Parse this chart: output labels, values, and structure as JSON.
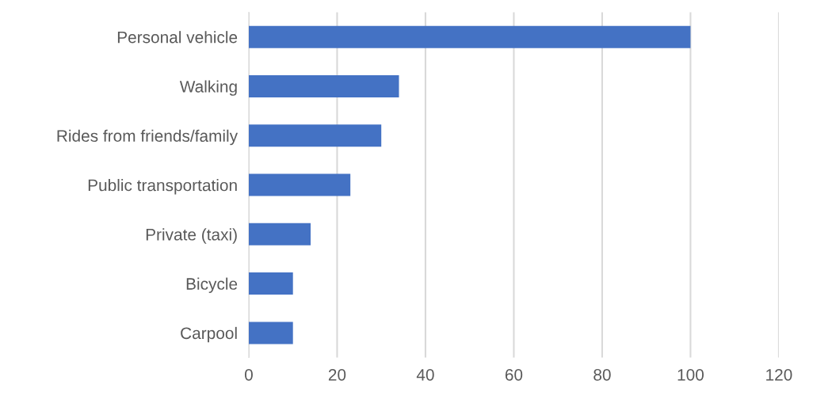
{
  "chart_data": {
    "type": "bar",
    "orientation": "horizontal",
    "categories": [
      "Personal vehicle",
      "Walking",
      "Rides from friends/family",
      "Public transportation",
      "Private (taxi)",
      "Bicycle",
      "Carpool"
    ],
    "values": [
      100,
      34,
      30,
      23,
      14,
      10,
      10
    ],
    "color": "#4472c4",
    "xlim": [
      0,
      120
    ],
    "xticks": [
      0,
      20,
      40,
      60,
      80,
      100,
      120
    ],
    "grid": "x"
  }
}
